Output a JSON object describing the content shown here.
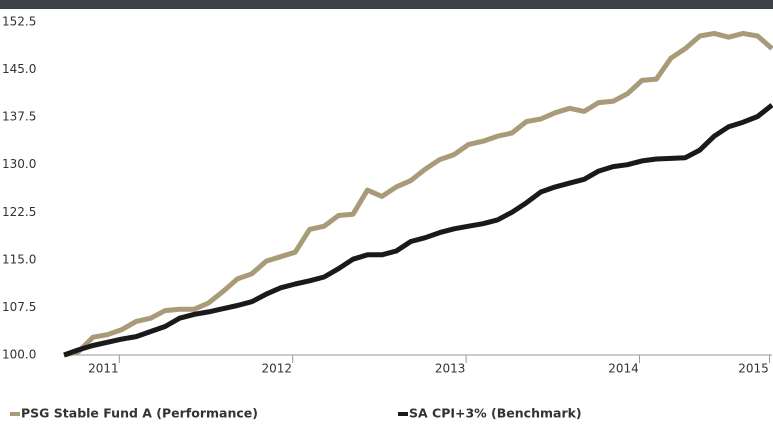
{
  "chart_data": {
    "type": "line",
    "categories": [
      null,
      null,
      null,
      "2011",
      null,
      null,
      null,
      null,
      null,
      null,
      null,
      null,
      null,
      null,
      null,
      "2012",
      null,
      null,
      null,
      null,
      null,
      null,
      null,
      null,
      null,
      null,
      null,
      "2013",
      null,
      null,
      null,
      null,
      null,
      null,
      null,
      null,
      null,
      null,
      null,
      "2014",
      null,
      null,
      null,
      null,
      null,
      null,
      null,
      null,
      "2015",
      null
    ],
    "series": [
      {
        "name": "PSG Stable Fund A (Performance)",
        "color": "#a99a78",
        "values": [
          100.0,
          100.5,
          102.8,
          103.2,
          104.0,
          105.3,
          105.8,
          107.0,
          107.2,
          107.2,
          108.2,
          110.0,
          112.0,
          112.8,
          114.8,
          115.5,
          116.2,
          119.8,
          120.3,
          122.0,
          122.2,
          126.0,
          125.0,
          126.5,
          127.5,
          129.3,
          130.8,
          131.6,
          133.2,
          133.7,
          134.5,
          135.0,
          136.8,
          137.2,
          138.2,
          138.9,
          138.4,
          139.8,
          140.0,
          141.2,
          143.3,
          143.5,
          146.8,
          148.3,
          150.3,
          150.7,
          150.1,
          150.7,
          150.3,
          148.3
        ]
      },
      {
        "name": "SA CPI+3% (Benchmark)",
        "color": "#1a1a1a",
        "values": [
          100.0,
          100.8,
          101.5,
          102.0,
          102.5,
          102.9,
          103.7,
          104.5,
          105.8,
          106.4,
          106.8,
          107.3,
          107.8,
          108.4,
          109.6,
          110.6,
          111.2,
          111.7,
          112.3,
          113.6,
          115.1,
          115.8,
          115.8,
          116.4,
          117.9,
          118.5,
          119.3,
          119.9,
          120.3,
          120.7,
          121.3,
          122.5,
          124.0,
          125.7,
          126.5,
          127.1,
          127.7,
          129.0,
          129.7,
          130.0,
          130.6,
          130.9,
          131.0,
          131.1,
          132.3,
          134.5,
          136.0,
          136.7,
          137.6,
          139.4
        ]
      }
    ],
    "ylim": [
      100,
      152.5
    ],
    "yticks": [
      {
        "value": 100,
        "label": "100.0"
      },
      {
        "value": 107.5,
        "label": "107.5"
      },
      {
        "value": 115,
        "label": "115.0"
      },
      {
        "value": 122.5,
        "label": "122.5"
      },
      {
        "value": 130,
        "label": "130.0"
      },
      {
        "value": 137.5,
        "label": "137.5"
      },
      {
        "value": 145,
        "label": "145.0"
      },
      {
        "value": 152.5,
        "label": "152.5"
      }
    ]
  }
}
